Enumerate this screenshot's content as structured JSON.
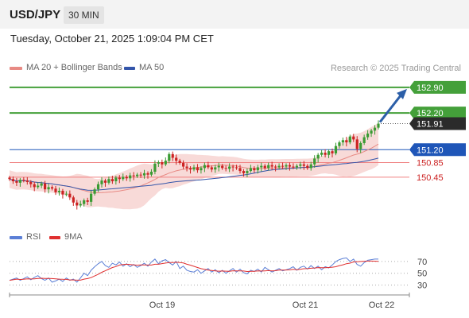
{
  "header": {
    "symbol": "USD/JPY",
    "timeframe": "30 MIN"
  },
  "timestamp": "Tuesday, October 21, 2025 1:09:04 PM CET",
  "legend": {
    "ma20_label": "MA 20 + Bollinger Bands",
    "ma50_label": "MA 50",
    "credit": "Research © 2025 Trading Central"
  },
  "rsi_legend": {
    "rsi_label": "RSI",
    "ma_label": "9MA"
  },
  "colors": {
    "up": "#3a9b33",
    "down": "#cc2222",
    "ma20": "#e88a84",
    "ma50": "#3355aa",
    "bollinger_fill": "#f7d4d1",
    "green_level": "#44a03a",
    "blue_level": "#1f56b8",
    "red_level": "#f08080",
    "arrow": "#2c5fa8",
    "rsi": "#5b7fd6",
    "rsi_ma": "#e03030"
  },
  "chart_data": {
    "type": "candlestick",
    "x_ticks": [
      "Oct 19",
      "Oct 21",
      "Oct 22"
    ],
    "y_range": [
      149.3,
      153.2
    ],
    "levels": [
      {
        "value": 152.9,
        "label": "152.90",
        "kind": "target-green"
      },
      {
        "value": 152.2,
        "label": "152.20",
        "kind": "green"
      },
      {
        "value": 151.91,
        "label": "151.91",
        "kind": "current"
      },
      {
        "value": 151.2,
        "label": "151.20",
        "kind": "pivot-blue"
      },
      {
        "value": 150.85,
        "label": "150.85",
        "kind": "support-red"
      },
      {
        "value": 150.45,
        "label": "150.45",
        "kind": "support-red"
      }
    ],
    "close": [
      150.4,
      150.34,
      150.3,
      150.38,
      150.36,
      150.32,
      150.26,
      150.18,
      150.22,
      150.28,
      150.12,
      150.18,
      150.14,
      150.04,
      150.08,
      149.98,
      150.0,
      149.9,
      149.76,
      149.68,
      149.72,
      149.82,
      149.78,
      150.0,
      150.12,
      150.26,
      150.36,
      150.3,
      150.4,
      150.34,
      150.44,
      150.4,
      150.46,
      150.42,
      150.5,
      150.48,
      150.52,
      150.5,
      150.56,
      150.52,
      150.6,
      150.82,
      150.86,
      150.8,
      150.9,
      151.08,
      150.98,
      150.9,
      150.84,
      150.74,
      150.7,
      150.66,
      150.72,
      150.64,
      150.7,
      150.78,
      150.72,
      150.66,
      150.72,
      150.76,
      150.7,
      150.68,
      150.74,
      150.72,
      150.7,
      150.62,
      150.56,
      150.62,
      150.7,
      150.64,
      150.72,
      150.76,
      150.7,
      150.78,
      150.74,
      150.72,
      150.76,
      150.74,
      150.78,
      150.74,
      150.72,
      150.76,
      150.8,
      150.76,
      150.7,
      150.8,
      150.96,
      151.06,
      151.12,
      151.06,
      151.16,
      151.1,
      151.3,
      151.4,
      151.46,
      151.4,
      151.56,
      151.48,
      151.22,
      151.38,
      151.54,
      151.64,
      151.72,
      151.8,
      151.91
    ],
    "rsi": [
      38,
      40,
      42,
      38,
      41,
      44,
      39,
      43,
      46,
      41,
      38,
      42,
      35,
      37,
      40,
      36,
      42,
      38,
      40,
      35,
      42,
      50,
      46,
      55,
      61,
      66,
      70,
      63,
      60,
      67,
      64,
      69,
      62,
      66,
      61,
      65,
      60,
      63,
      67,
      62,
      69,
      74,
      66,
      71,
      73,
      68,
      64,
      70,
      58,
      62,
      55,
      53,
      52,
      56,
      50,
      54,
      58,
      52,
      56,
      51,
      55,
      50,
      54,
      58,
      52,
      57,
      51,
      49,
      55,
      53,
      57,
      52,
      60,
      56,
      52,
      55,
      58,
      54,
      56,
      58,
      61,
      55,
      60,
      62,
      57,
      63,
      58,
      62,
      56,
      61,
      59,
      64,
      70,
      73,
      75,
      76,
      70,
      74,
      65,
      62,
      68,
      72,
      73,
      74,
      74
    ],
    "rsi_ticks": [
      70,
      50,
      30
    ]
  }
}
